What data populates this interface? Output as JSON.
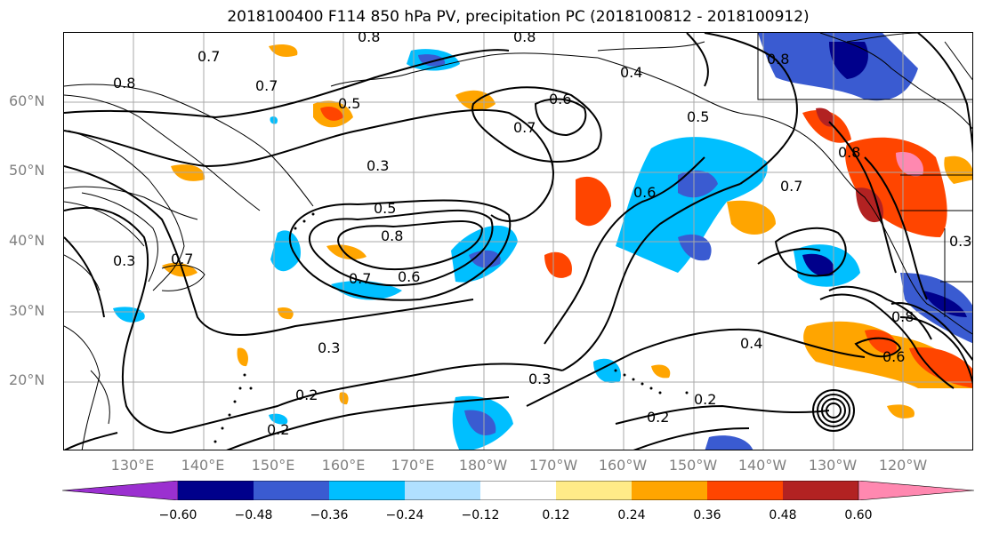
{
  "title": "2018100400 F114 850 hPa PV, precipitation PC (2018100812 - 2018100912)",
  "lat_labels": [
    "60°N",
    "50°N",
    "40°N",
    "30°N",
    "20°N"
  ],
  "lon_labels": [
    "130°E",
    "140°E",
    "150°E",
    "160°E",
    "170°E",
    "180°W",
    "170°W",
    "160°W",
    "150°W",
    "140°W",
    "130°W",
    "120°W"
  ],
  "colorbar": {
    "colors": [
      "#9b30d0",
      "#00008b",
      "#3a5bd1",
      "#00bfff",
      "#b0e0ff",
      "#ffffff",
      "#ffeb88",
      "#ffa500",
      "#ff4500",
      "#b22222",
      "#ff88b0"
    ],
    "ticks": [
      "−0.60",
      "−0.48",
      "−0.36",
      "−0.24",
      "−0.12",
      "0.12",
      "0.24",
      "0.36",
      "0.48",
      "0.60"
    ]
  },
  "contour_labels": [
    "0.7",
    "0.7",
    "0.8",
    "0.8",
    "0.8",
    "0.4",
    "0.6",
    "0.7",
    "0.5",
    "0.5",
    "0.3",
    "0.5",
    "0.8",
    "0.7",
    "0.6",
    "0.6",
    "0.7",
    "0.8",
    "0.7",
    "0.3",
    "0.3",
    "0.2",
    "0.2",
    "0.3",
    "0.4",
    "0.2",
    "0.2",
    "0.6",
    "0.8",
    "0.3",
    "0.8"
  ]
}
